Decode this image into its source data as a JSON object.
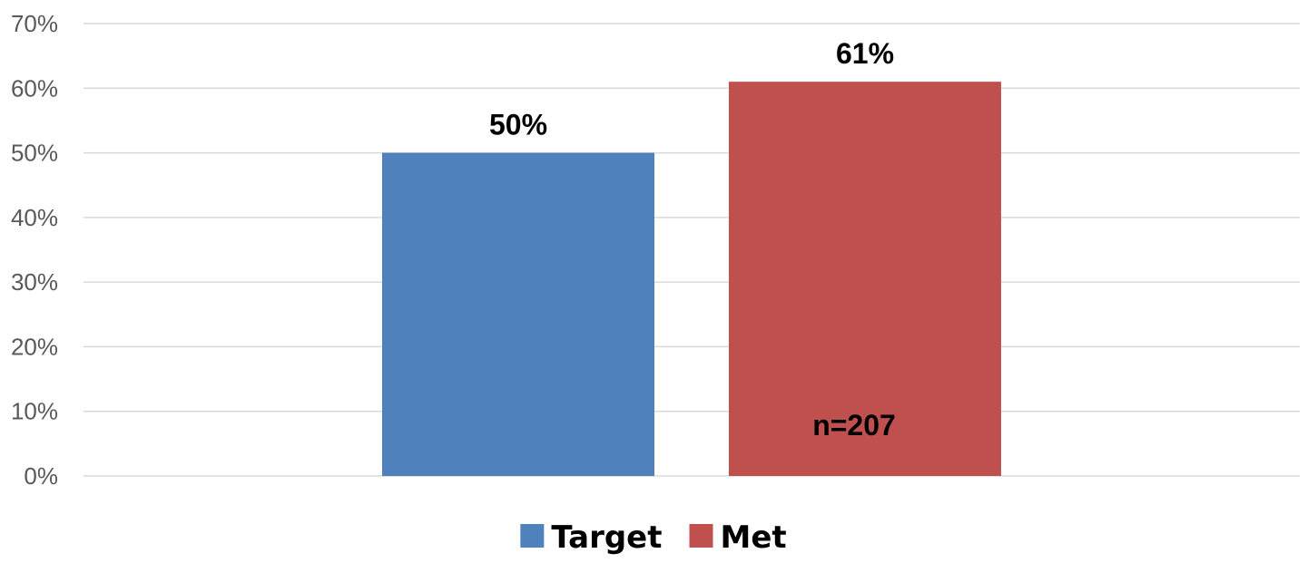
{
  "chart_data": {
    "type": "bar",
    "series": [
      {
        "name": "Target",
        "value": 50,
        "label": "50%",
        "color": "#4F81BD"
      },
      {
        "name": "Met",
        "value": 61,
        "label": "61%",
        "color": "#C0504D"
      }
    ],
    "ylim": [
      0,
      70
    ],
    "yticks": [
      0,
      10,
      20,
      30,
      40,
      50,
      60,
      70
    ],
    "ytick_labels": [
      "0%",
      "10%",
      "20%",
      "30%",
      "40%",
      "50%",
      "60%",
      "70%"
    ],
    "annotation": "n=207",
    "grid": true,
    "legend_position": "bottom"
  }
}
